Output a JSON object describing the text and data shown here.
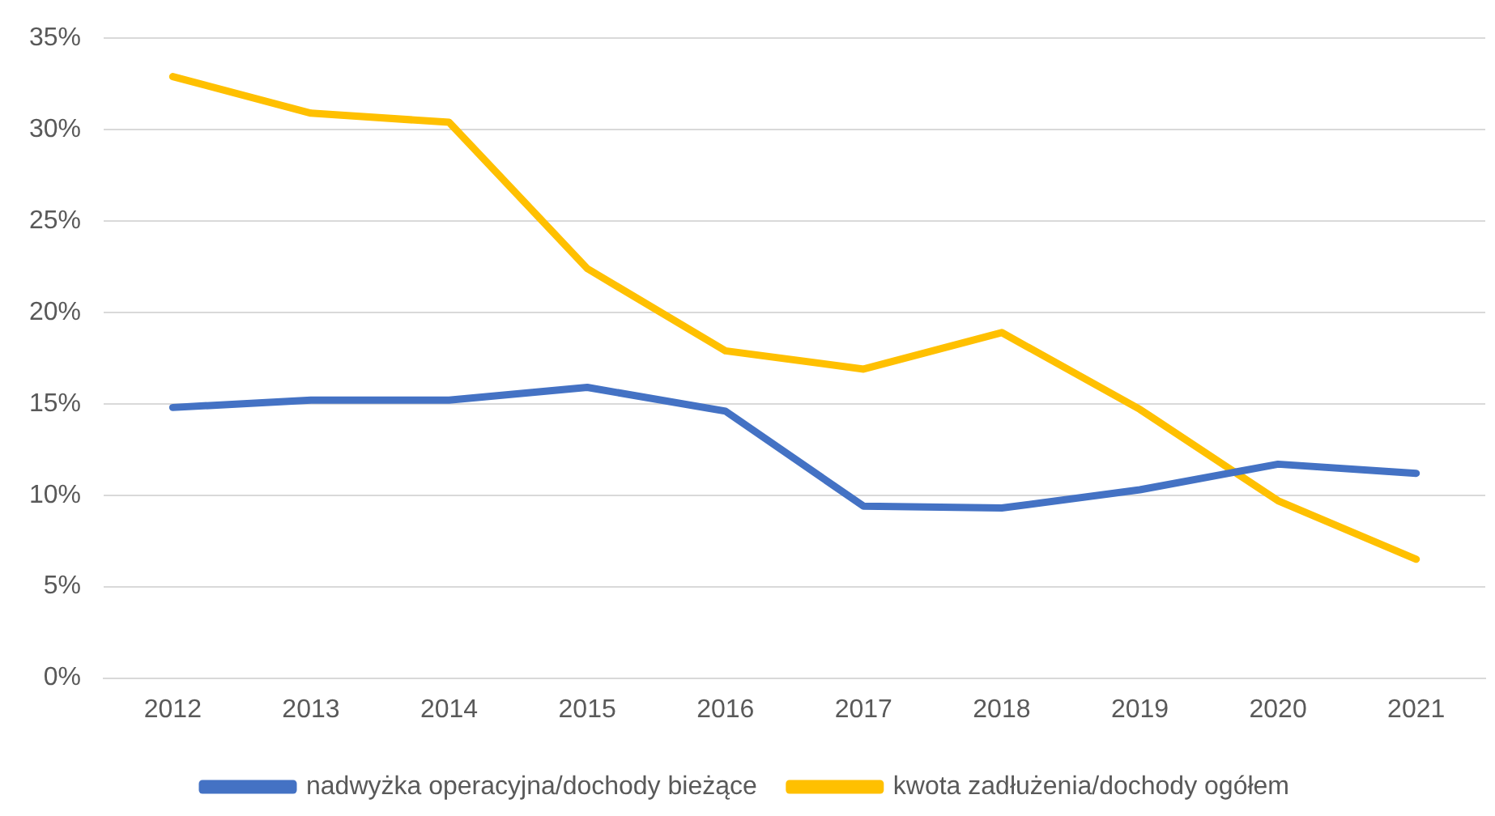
{
  "chart_data": {
    "type": "line",
    "categories": [
      "2012",
      "2013",
      "2014",
      "2015",
      "2016",
      "2017",
      "2018",
      "2019",
      "2020",
      "2021"
    ],
    "series": [
      {
        "name": "nadwyżka operacyjna/dochody bieżące",
        "color": "#4472c4",
        "values": [
          14.8,
          15.2,
          15.2,
          15.9,
          14.6,
          9.4,
          9.3,
          10.3,
          11.7,
          11.2
        ]
      },
      {
        "name": "kwota zadłużenia/dochody ogółem",
        "color": "#ffc000",
        "values": [
          32.9,
          30.9,
          30.4,
          22.4,
          17.9,
          16.9,
          18.9,
          14.7,
          9.7,
          6.5
        ]
      }
    ],
    "ylim": [
      0,
      35
    ],
    "yticks": [
      {
        "value": 0,
        "label": "0%"
      },
      {
        "value": 5,
        "label": "5%"
      },
      {
        "value": 10,
        "label": "10%"
      },
      {
        "value": 15,
        "label": "15%"
      },
      {
        "value": 20,
        "label": "20%"
      },
      {
        "value": 25,
        "label": "25%"
      },
      {
        "value": 30,
        "label": "30%"
      },
      {
        "value": 35,
        "label": "35%"
      }
    ],
    "grid": "y",
    "legend": "bottom",
    "marker": "none",
    "line_style": "solid"
  }
}
